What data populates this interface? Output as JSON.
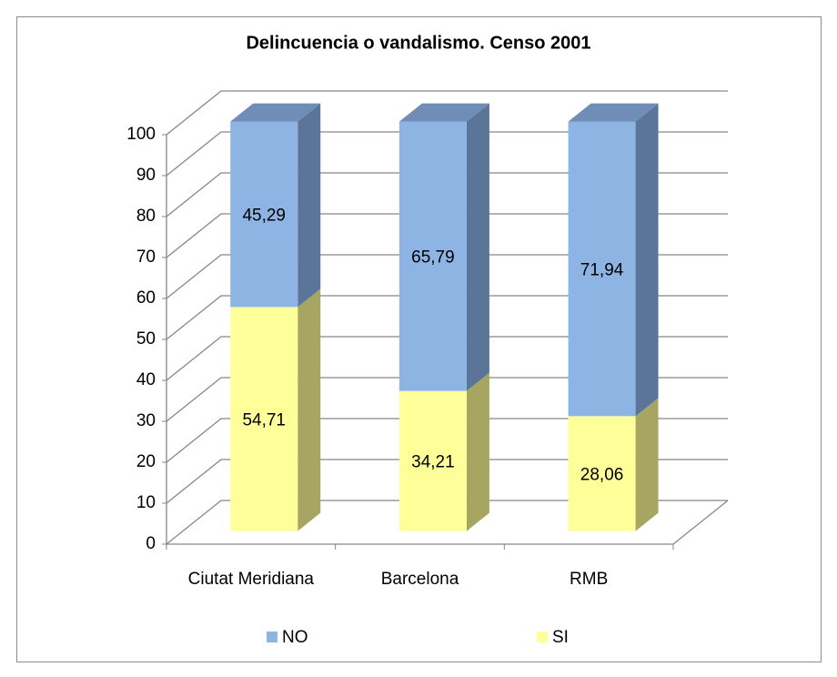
{
  "chart_data": {
    "type": "bar3d_stacked",
    "title": "Delincuencia o vandalismo. Censo 2001",
    "categories": [
      "Ciutat Meridiana",
      "Barcelona",
      "RMB"
    ],
    "series": [
      {
        "name": "NO",
        "color": "#8eb4e3",
        "side_color": "#5a7598",
        "top_color": "#6f8db6",
        "values": [
          45.29,
          65.79,
          71.94
        ],
        "value_labels": [
          "45,29",
          "65,79",
          "71,94"
        ]
      },
      {
        "name": "SI",
        "color": "#ffff99",
        "side_color": "#a6a662",
        "top_color": "#c9c97a",
        "values": [
          54.71,
          34.21,
          28.06
        ],
        "value_labels": [
          "54,71",
          "34,21",
          "28,06"
        ]
      }
    ],
    "stacked": true,
    "ylim": [
      0,
      100
    ],
    "yticks": [
      0,
      10,
      20,
      30,
      40,
      50,
      60,
      70,
      80,
      90,
      100
    ],
    "grid": true,
    "legend": "bottom"
  }
}
